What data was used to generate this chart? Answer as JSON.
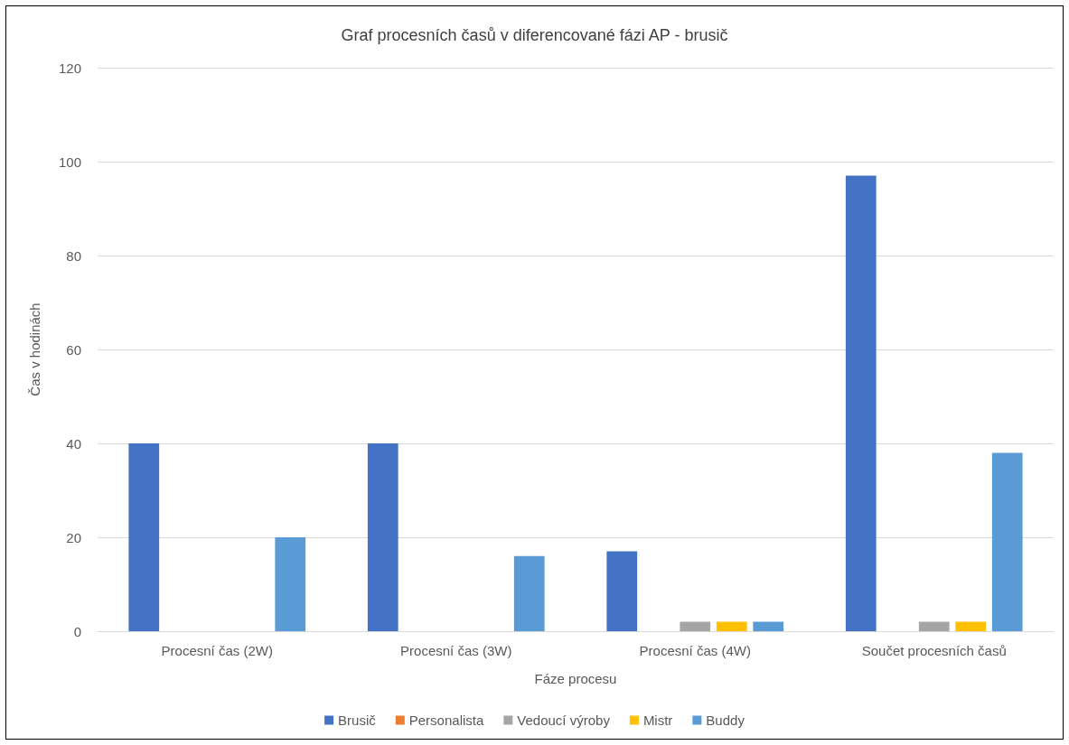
{
  "chart_data": {
    "type": "bar",
    "title": "Graf procesních časů v diferencované fázi AP - brusič",
    "xlabel": "Fáze procesu",
    "ylabel": "Čas v hodinách",
    "categories": [
      "Procesní čas (2W)",
      "Procesní čas (3W)",
      "Procesní čas (4W)",
      "Součet procesních časů"
    ],
    "series": [
      {
        "name": "Brusič",
        "color": "#4472c4",
        "values": [
          40,
          40,
          17,
          97
        ]
      },
      {
        "name": "Personalista",
        "color": "#ed7d31",
        "values": [
          0,
          0,
          0,
          0
        ]
      },
      {
        "name": "Vedoucí výroby",
        "color": "#a5a5a5",
        "values": [
          0,
          0,
          2,
          2
        ]
      },
      {
        "name": "Mistr",
        "color": "#ffc000",
        "values": [
          0,
          0,
          2,
          2
        ]
      },
      {
        "name": "Buddy",
        "color": "#5b9bd5",
        "values": [
          20,
          16,
          2,
          38
        ]
      }
    ],
    "ylim": [
      0,
      120
    ],
    "yticks": [
      0,
      20,
      40,
      60,
      80,
      100,
      120
    ],
    "grid": "y",
    "legend": "bottom"
  }
}
